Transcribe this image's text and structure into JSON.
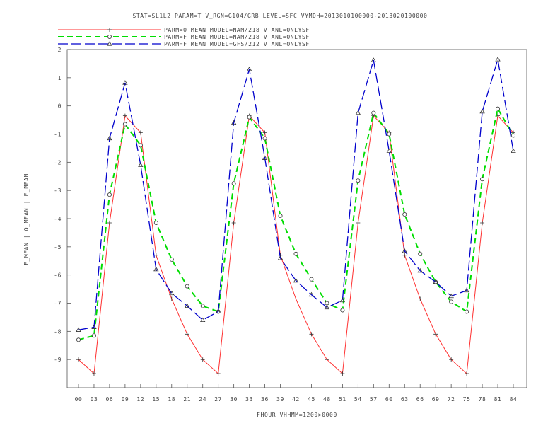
{
  "chart_data": {
    "type": "line",
    "title": "STAT=SL1L2 PARAM=T V_RGN=G104/GRB LEVEL=SFC VYMDH=2013010100000-2013020100000",
    "xlabel": "FHOUR VHHMM=1200>0000",
    "ylabel": "F_MEAN | O_MEAN | F_MEAN",
    "ylim": [
      -10,
      2
    ],
    "yticks": [
      "2",
      "1",
      "0",
      "-1",
      "-2",
      "-3",
      "-4",
      "-5",
      "-6",
      "-7",
      "-8",
      "-9"
    ],
    "categories": [
      "00",
      "03",
      "06",
      "09",
      "12",
      "15",
      "18",
      "21",
      "24",
      "27",
      "30",
      "33",
      "36",
      "39",
      "42",
      "45",
      "48",
      "51",
      "54",
      "57",
      "60",
      "63",
      "66",
      "69",
      "72",
      "75",
      "78",
      "81",
      "84"
    ],
    "legend_position": "top",
    "grid": false,
    "series": [
      {
        "name": "PARM=O_MEAN MODEL=NAM/218 V_ANL=ONLYSF",
        "color": "#ff3030",
        "dash": "solid",
        "marker": "plus",
        "values": [
          -9.0,
          -9.5,
          -4.15,
          -0.35,
          -0.95,
          -5.3,
          -6.85,
          -8.1,
          -9.0,
          -9.5,
          -4.15,
          -0.35,
          -0.95,
          -5.3,
          -6.85,
          -8.1,
          -9.0,
          -9.5,
          -4.15,
          -0.35,
          -0.95,
          -5.3,
          -6.85,
          -8.1,
          -9.0,
          -9.5,
          -4.15,
          -0.35,
          -0.95
        ]
      },
      {
        "name": "PARM=F_MEAN MODEL=NAM/218 V_ANL=ONLYSF",
        "color": "#00dd00",
        "dash": "dashed",
        "marker": "circle",
        "values": [
          -8.3,
          -8.15,
          -3.15,
          -0.65,
          -1.4,
          -4.15,
          -5.45,
          -6.4,
          -7.1,
          -7.3,
          -2.75,
          -0.4,
          -1.15,
          -3.9,
          -5.25,
          -6.15,
          -7.0,
          -7.25,
          -2.65,
          -0.25,
          -1.0,
          -3.85,
          -5.25,
          -6.25,
          -6.95,
          -7.3,
          -2.6,
          -0.1,
          -1.05
        ]
      },
      {
        "name": "PARM=F_MEAN MODEL=GFS/212 V_ANL=ONLYSF",
        "color": "#0000cc",
        "dash": "longdash",
        "marker": "triangle",
        "values": [
          -7.95,
          -7.85,
          -1.15,
          0.82,
          -2.1,
          -5.8,
          -6.65,
          -7.1,
          -7.6,
          -7.3,
          -0.6,
          1.3,
          -1.85,
          -5.4,
          -6.2,
          -6.7,
          -7.15,
          -6.9,
          -0.25,
          1.62,
          -1.6,
          -5.15,
          -5.85,
          -6.25,
          -6.75,
          -6.55,
          -0.2,
          1.65,
          -1.6
        ]
      }
    ]
  }
}
